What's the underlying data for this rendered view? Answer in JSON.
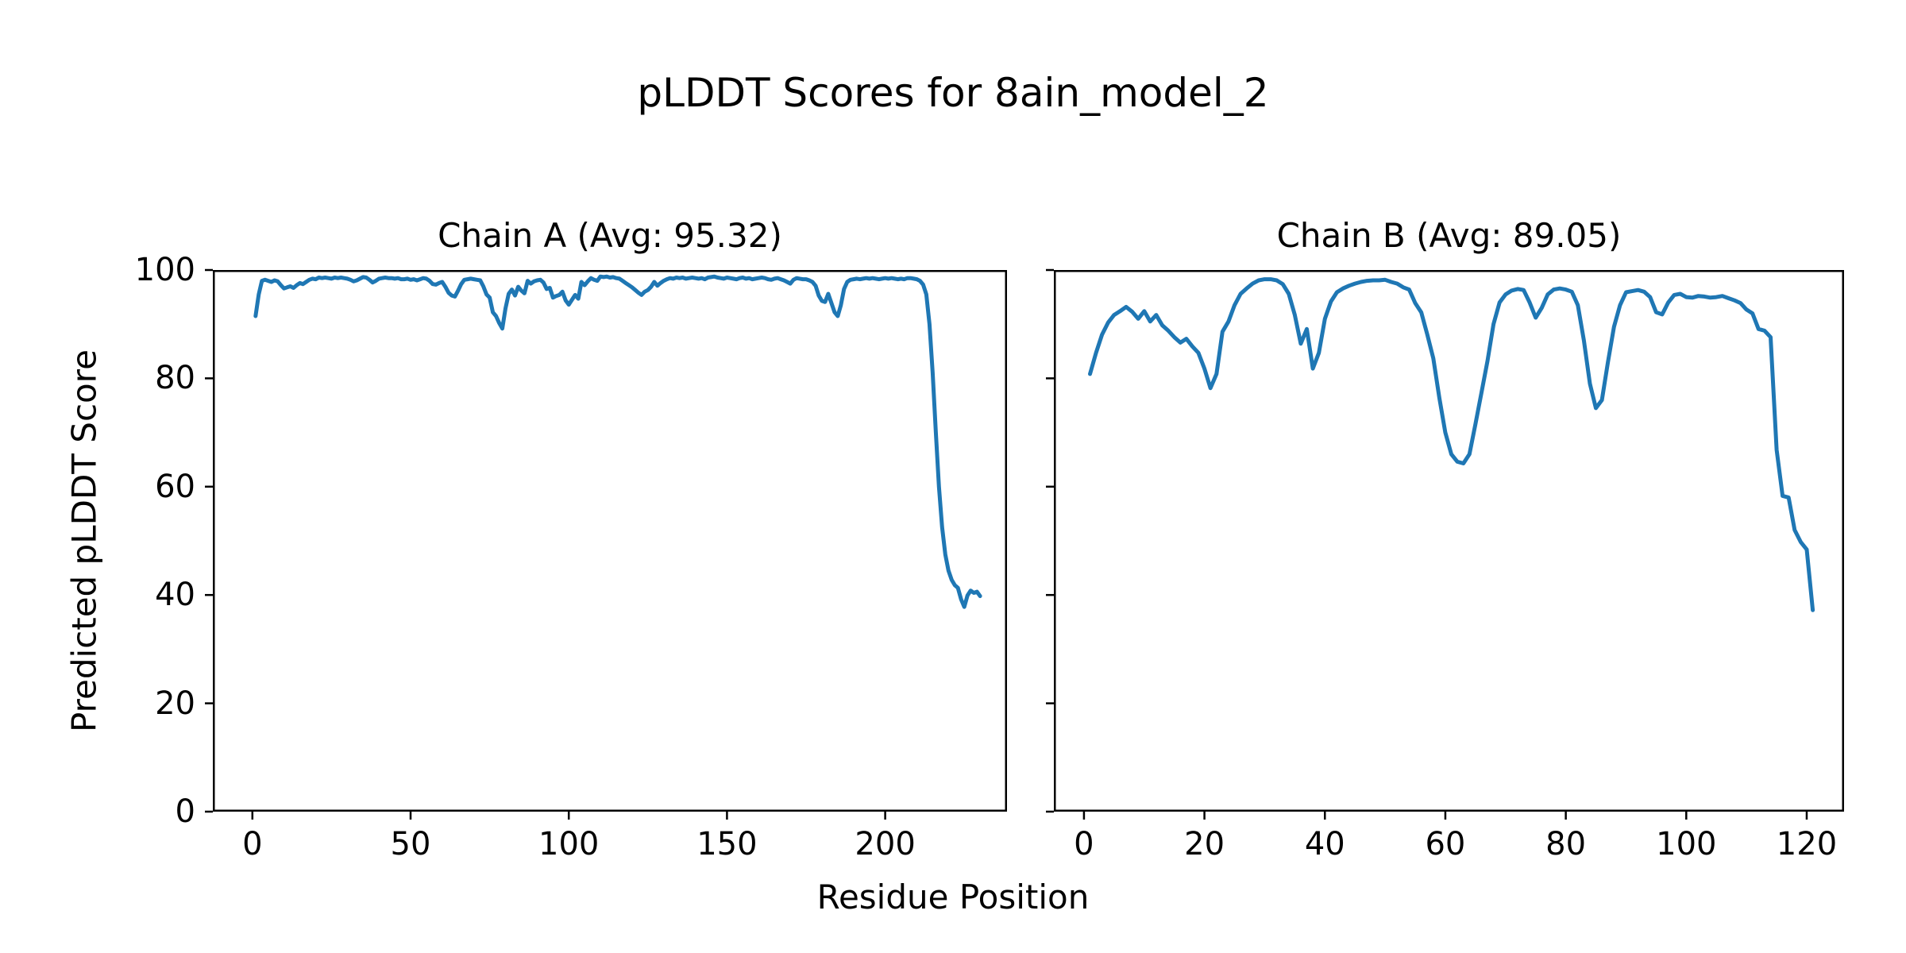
{
  "figure": {
    "title": "pLDDT Scores for 8ain_model_2",
    "xlabel": "Residue Position",
    "ylabel": "Predicted pLDDT Score",
    "background_color": "#ffffff",
    "line_color": "#1f77b4",
    "spine_color": "#000000",
    "text_color": "#000000"
  },
  "chart_data": [
    {
      "type": "line",
      "title": "Chain A (Avg: 95.32)",
      "average_plddt": 95.32,
      "chain": "A",
      "x_start": 1,
      "xlim": [
        -12.5,
        238.5
      ],
      "ylim": [
        0,
        100
      ],
      "xticks": [
        0,
        50,
        100,
        150,
        200
      ],
      "yticks": [
        0,
        20,
        40,
        60,
        80,
        100
      ],
      "show_ytick_labels": true,
      "values": [
        91.5,
        95.5,
        98.0,
        98.2,
        98.0,
        97.8,
        98.1,
        97.9,
        97.2,
        96.6,
        96.8,
        97.0,
        96.7,
        97.2,
        97.6,
        97.4,
        97.8,
        98.2,
        98.4,
        98.3,
        98.6,
        98.5,
        98.6,
        98.5,
        98.4,
        98.6,
        98.5,
        98.6,
        98.5,
        98.4,
        98.2,
        97.9,
        98.1,
        98.4,
        98.7,
        98.6,
        98.2,
        97.7,
        98.0,
        98.4,
        98.5,
        98.6,
        98.5,
        98.5,
        98.4,
        98.5,
        98.3,
        98.3,
        98.4,
        98.2,
        98.3,
        98.1,
        98.3,
        98.5,
        98.4,
        98.0,
        97.4,
        97.3,
        97.6,
        97.8,
        96.9,
        95.8,
        95.3,
        95.1,
        96.2,
        97.4,
        98.2,
        98.3,
        98.4,
        98.3,
        98.2,
        98.1,
        97.0,
        95.5,
        94.9,
        92.2,
        91.5,
        90.2,
        89.2,
        92.9,
        95.6,
        96.4,
        95.3,
        96.9,
        96.2,
        95.7,
        98.0,
        97.5,
        97.9,
        98.1,
        98.2,
        97.7,
        96.5,
        96.7,
        94.9,
        95.2,
        95.4,
        96.0,
        94.4,
        93.6,
        94.5,
        95.4,
        94.7,
        97.8,
        97.2,
        97.9,
        98.5,
        98.2,
        98.0,
        98.8,
        98.7,
        98.8,
        98.6,
        98.7,
        98.5,
        98.4,
        98.0,
        97.6,
        97.2,
        96.8,
        96.3,
        95.8,
        95.4,
        96.0,
        96.3,
        96.9,
        97.8,
        97.1,
        97.6,
        98.0,
        98.3,
        98.5,
        98.4,
        98.6,
        98.5,
        98.6,
        98.4,
        98.5,
        98.6,
        98.5,
        98.4,
        98.5,
        98.3,
        98.6,
        98.7,
        98.8,
        98.6,
        98.5,
        98.4,
        98.6,
        98.5,
        98.4,
        98.3,
        98.5,
        98.6,
        98.4,
        98.5,
        98.3,
        98.4,
        98.5,
        98.6,
        98.5,
        98.3,
        98.2,
        98.4,
        98.5,
        98.3,
        98.1,
        97.8,
        97.5,
        98.2,
        98.5,
        98.4,
        98.3,
        98.3,
        98.1,
        97.8,
        97.1,
        95.3,
        94.3,
        94.1,
        95.6,
        93.9,
        92.2,
        91.5,
        93.5,
        96.5,
        97.8,
        98.2,
        98.3,
        98.4,
        98.3,
        98.4,
        98.5,
        98.4,
        98.5,
        98.4,
        98.3,
        98.4,
        98.5,
        98.4,
        98.5,
        98.4,
        98.3,
        98.4,
        98.3,
        98.5,
        98.5,
        98.4,
        98.3,
        98.0,
        97.3,
        95.5,
        90.0,
        81.0,
        70.0,
        60.0,
        52.5,
        47.5,
        44.5,
        42.8,
        41.8,
        41.3,
        39.2,
        37.8,
        39.9,
        40.8,
        40.4,
        40.6,
        39.8
      ]
    },
    {
      "type": "line",
      "title": "Chain B (Avg: 89.05)",
      "average_plddt": 89.05,
      "chain": "B",
      "x_start": 1,
      "xlim": [
        -5.0,
        126.2
      ],
      "ylim": [
        0,
        100
      ],
      "xticks": [
        0,
        20,
        40,
        60,
        80,
        100,
        120
      ],
      "yticks": [
        0,
        20,
        40,
        60,
        80,
        100
      ],
      "show_ytick_labels": false,
      "values": [
        80.8,
        84.7,
        88.1,
        90.3,
        91.7,
        92.4,
        93.2,
        92.3,
        91.0,
        92.4,
        90.5,
        91.7,
        89.8,
        88.8,
        87.6,
        86.6,
        87.3,
        85.9,
        84.7,
        81.8,
        78.2,
        80.8,
        88.6,
        90.5,
        93.5,
        95.6,
        96.6,
        97.5,
        98.1,
        98.3,
        98.3,
        98.1,
        97.4,
        95.6,
        91.7,
        86.4,
        89.1,
        81.8,
        84.7,
        91.0,
        94.2,
        95.9,
        96.6,
        97.1,
        97.5,
        97.8,
        98.0,
        98.1,
        98.1,
        98.2,
        97.8,
        97.5,
        96.8,
        96.4,
        93.9,
        92.2,
        88.1,
        83.7,
        76.4,
        70.0,
        66.0,
        64.6,
        64.3,
        66.0,
        71.6,
        77.4,
        83.2,
        90.0,
        94.0,
        95.5,
        96.2,
        96.5,
        96.3,
        94.0,
        91.2,
        93.0,
        95.5,
        96.4,
        96.6,
        96.4,
        96.0,
        93.5,
        87.0,
        79.0,
        74.5,
        76.0,
        83.0,
        89.5,
        93.5,
        95.9,
        96.1,
        96.3,
        96.0,
        95.0,
        92.2,
        91.8,
        94.0,
        95.4,
        95.6,
        95.0,
        94.9,
        95.2,
        95.1,
        94.9,
        95.0,
        95.2,
        94.8,
        94.4,
        93.9,
        92.7,
        92.0,
        89.1,
        88.8,
        87.6,
        66.8,
        58.3,
        58.0,
        52.0,
        49.8,
        48.4,
        37.2
      ]
    }
  ],
  "style": {
    "line_width": 5,
    "spine_width": 2.5,
    "tick_length": 10
  }
}
